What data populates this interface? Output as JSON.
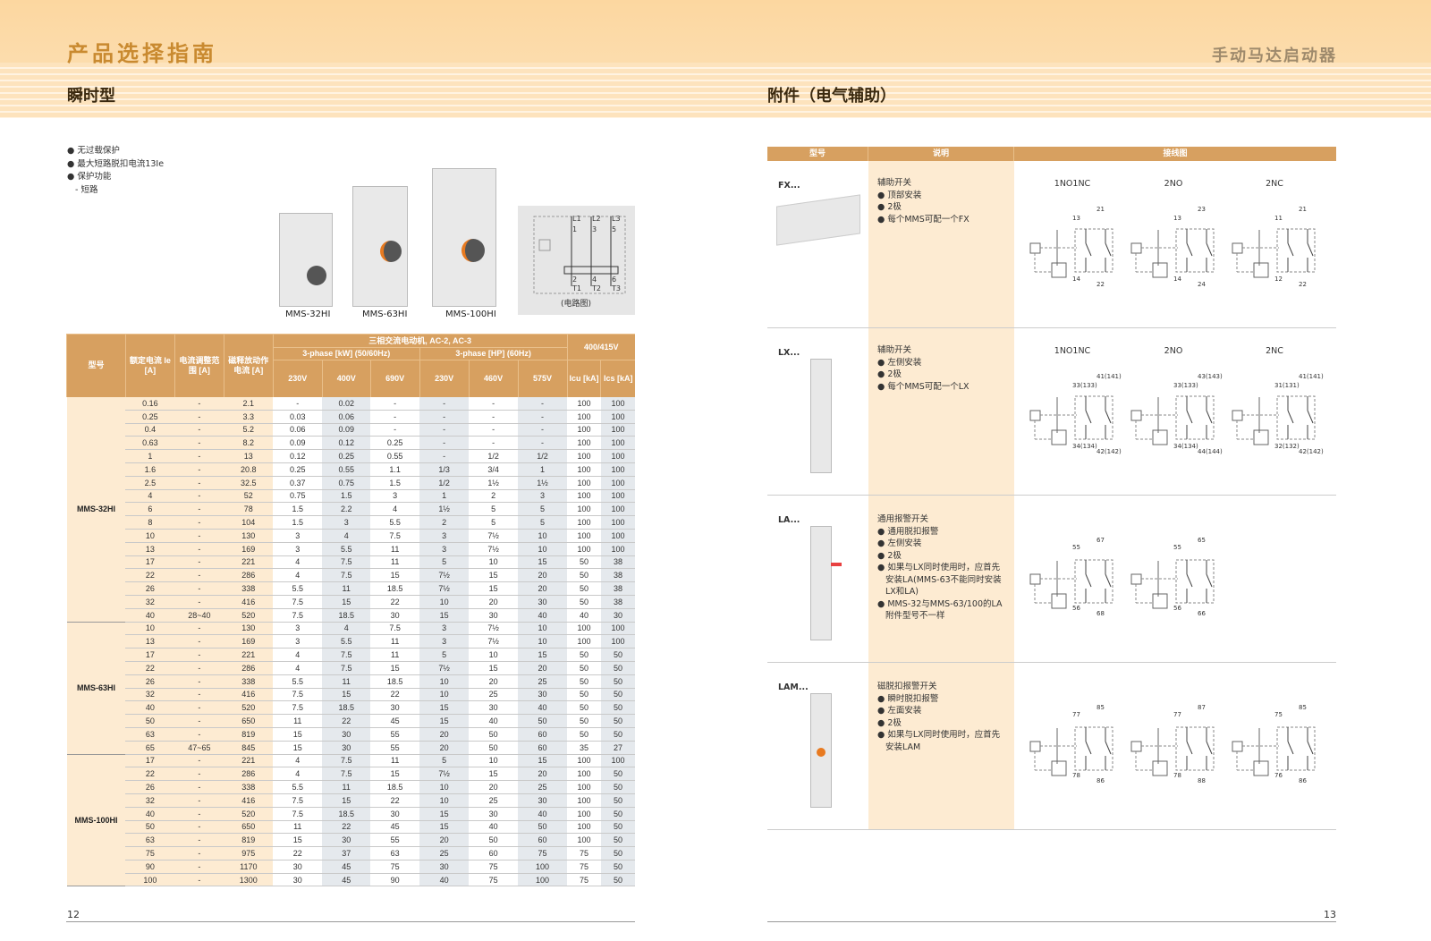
{
  "header": {
    "title": "产品选择指南",
    "right_title": "手动马达启动器",
    "left_section": "瞬时型",
    "right_section": "附件（电气辅助）"
  },
  "features": [
    "无过载保护",
    "最大短路脱扣电流13Ie",
    "保护功能",
    "- 短路"
  ],
  "products": [
    "MMS-32HI",
    "MMS-63HI",
    "MMS-100HI"
  ],
  "circuit": {
    "caption": "(电路图)",
    "lines": [
      "L1",
      "L2",
      "L3"
    ],
    "in": [
      "1",
      "3",
      "5"
    ],
    "out": [
      "2",
      "4",
      "6"
    ],
    "terms": [
      "T1",
      "T2",
      "T3"
    ]
  },
  "table": {
    "head": {
      "model": "型号",
      "ie": "额定电流 Ie [A]",
      "range": "电流调整范围 [A]",
      "mag": "磁释放动作电流 [A]",
      "motor": "三相交流电动机, AC-2, AC-3",
      "kw": "3-phase [kW] (50/60Hz)",
      "hp": "3-phase [HP] (60Hz)",
      "volt": "400/415V",
      "v": [
        "230V",
        "400V",
        "690V",
        "230V",
        "460V",
        "575V"
      ],
      "icu": "Icu [kA]",
      "ics": "Ics [kA]"
    },
    "groups": [
      {
        "model": "MMS-32HI",
        "rows": [
          [
            "0.16",
            "-",
            "2.1",
            "-",
            "0.02",
            "-",
            "-",
            "-",
            "-",
            "100",
            "100"
          ],
          [
            "0.25",
            "-",
            "3.3",
            "0.03",
            "0.06",
            "-",
            "-",
            "-",
            "-",
            "100",
            "100"
          ],
          [
            "0.4",
            "-",
            "5.2",
            "0.06",
            "0.09",
            "-",
            "-",
            "-",
            "-",
            "100",
            "100"
          ],
          [
            "0.63",
            "-",
            "8.2",
            "0.09",
            "0.12",
            "0.25",
            "-",
            "-",
            "-",
            "100",
            "100"
          ],
          [
            "1",
            "-",
            "13",
            "0.12",
            "0.25",
            "0.55",
            "-",
            "1/2",
            "1/2",
            "100",
            "100"
          ],
          [
            "1.6",
            "-",
            "20.8",
            "0.25",
            "0.55",
            "1.1",
            "1/3",
            "3/4",
            "1",
            "100",
            "100"
          ],
          [
            "2.5",
            "-",
            "32.5",
            "0.37",
            "0.75",
            "1.5",
            "1/2",
            "1½",
            "1½",
            "100",
            "100"
          ],
          [
            "4",
            "-",
            "52",
            "0.75",
            "1.5",
            "3",
            "1",
            "2",
            "3",
            "100",
            "100"
          ],
          [
            "6",
            "-",
            "78",
            "1.5",
            "2.2",
            "4",
            "1½",
            "5",
            "5",
            "100",
            "100"
          ],
          [
            "8",
            "-",
            "104",
            "1.5",
            "3",
            "5.5",
            "2",
            "5",
            "5",
            "100",
            "100"
          ],
          [
            "10",
            "-",
            "130",
            "3",
            "4",
            "7.5",
            "3",
            "7½",
            "10",
            "100",
            "100"
          ],
          [
            "13",
            "-",
            "169",
            "3",
            "5.5",
            "11",
            "3",
            "7½",
            "10",
            "100",
            "100"
          ],
          [
            "17",
            "-",
            "221",
            "4",
            "7.5",
            "11",
            "5",
            "10",
            "15",
            "50",
            "38"
          ],
          [
            "22",
            "-",
            "286",
            "4",
            "7.5",
            "15",
            "7½",
            "15",
            "20",
            "50",
            "38"
          ],
          [
            "26",
            "-",
            "338",
            "5.5",
            "11",
            "18.5",
            "7½",
            "15",
            "20",
            "50",
            "38"
          ],
          [
            "32",
            "-",
            "416",
            "7.5",
            "15",
            "22",
            "10",
            "20",
            "30",
            "50",
            "38"
          ],
          [
            "40",
            "28~40",
            "520",
            "7.5",
            "18.5",
            "30",
            "15",
            "30",
            "40",
            "40",
            "30"
          ]
        ]
      },
      {
        "model": "MMS-63HI",
        "rows": [
          [
            "10",
            "-",
            "130",
            "3",
            "4",
            "7.5",
            "3",
            "7½",
            "10",
            "100",
            "100"
          ],
          [
            "13",
            "-",
            "169",
            "3",
            "5.5",
            "11",
            "3",
            "7½",
            "10",
            "100",
            "100"
          ],
          [
            "17",
            "-",
            "221",
            "4",
            "7.5",
            "11",
            "5",
            "10",
            "15",
            "50",
            "50"
          ],
          [
            "22",
            "-",
            "286",
            "4",
            "7.5",
            "15",
            "7½",
            "15",
            "20",
            "50",
            "50"
          ],
          [
            "26",
            "-",
            "338",
            "5.5",
            "11",
            "18.5",
            "10",
            "20",
            "25",
            "50",
            "50"
          ],
          [
            "32",
            "-",
            "416",
            "7.5",
            "15",
            "22",
            "10",
            "25",
            "30",
            "50",
            "50"
          ],
          [
            "40",
            "-",
            "520",
            "7.5",
            "18.5",
            "30",
            "15",
            "30",
            "40",
            "50",
            "50"
          ],
          [
            "50",
            "-",
            "650",
            "11",
            "22",
            "45",
            "15",
            "40",
            "50",
            "50",
            "50"
          ],
          [
            "63",
            "-",
            "819",
            "15",
            "30",
            "55",
            "20",
            "50",
            "60",
            "50",
            "50"
          ],
          [
            "65",
            "47~65",
            "845",
            "15",
            "30",
            "55",
            "20",
            "50",
            "60",
            "35",
            "27"
          ]
        ]
      },
      {
        "model": "MMS-100HI",
        "rows": [
          [
            "17",
            "-",
            "221",
            "4",
            "7.5",
            "11",
            "5",
            "10",
            "15",
            "100",
            "100"
          ],
          [
            "22",
            "-",
            "286",
            "4",
            "7.5",
            "15",
            "7½",
            "15",
            "20",
            "100",
            "50"
          ],
          [
            "26",
            "-",
            "338",
            "5.5",
            "11",
            "18.5",
            "10",
            "20",
            "25",
            "100",
            "50"
          ],
          [
            "32",
            "-",
            "416",
            "7.5",
            "15",
            "22",
            "10",
            "25",
            "30",
            "100",
            "50"
          ],
          [
            "40",
            "-",
            "520",
            "7.5",
            "18.5",
            "30",
            "15",
            "30",
            "40",
            "100",
            "50"
          ],
          [
            "50",
            "-",
            "650",
            "11",
            "22",
            "45",
            "15",
            "40",
            "50",
            "100",
            "50"
          ],
          [
            "63",
            "-",
            "819",
            "15",
            "30",
            "55",
            "20",
            "50",
            "60",
            "100",
            "50"
          ],
          [
            "75",
            "-",
            "975",
            "22",
            "37",
            "63",
            "25",
            "60",
            "75",
            "75",
            "50"
          ],
          [
            "90",
            "-",
            "1170",
            "30",
            "45",
            "75",
            "30",
            "75",
            "100",
            "75",
            "50"
          ],
          [
            "100",
            "-",
            "1300",
            "30",
            "45",
            "90",
            "40",
            "75",
            "100",
            "75",
            "50"
          ]
        ]
      }
    ]
  },
  "accessories": {
    "head": [
      "型号",
      "说明",
      "接线图"
    ],
    "items": [
      {
        "model": "FX...",
        "title": "辅助开关",
        "bullets": [
          "顶部安装",
          "2极",
          "每个MMS可配一个FX"
        ],
        "diagrams": [
          {
            "name": "1NO1NC",
            "t": [
              "13",
              "21",
              "14",
              "22"
            ]
          },
          {
            "name": "2NO",
            "t": [
              "13",
              "23",
              "14",
              "24"
            ]
          },
          {
            "name": "2NC",
            "t": [
              "11",
              "21",
              "12",
              "22"
            ]
          }
        ]
      },
      {
        "model": "LX...",
        "title": "辅助开关",
        "bullets": [
          "左侧安装",
          "2极",
          "每个MMS可配一个LX"
        ],
        "diagrams": [
          {
            "name": "1NO1NC",
            "t": [
              "33(133)",
              "41(141)",
              "34(134)",
              "42(142)"
            ]
          },
          {
            "name": "2NO",
            "t": [
              "33(133)",
              "43(143)",
              "34(134)",
              "44(144)"
            ]
          },
          {
            "name": "2NC",
            "t": [
              "31(131)",
              "41(141)",
              "32(132)",
              "42(142)"
            ]
          }
        ]
      },
      {
        "model": "LA...",
        "title": "通用报警开关",
        "bullets": [
          "通用脱扣报警",
          "左侧安装",
          "2极",
          "如果与LX同时使用时，应首先安装LA(MMS-63不能同时安装LX和LA)",
          "MMS-32与MMS-63/100的LA附件型号不一样"
        ],
        "diagrams": [
          {
            "name": "",
            "t": [
              "55",
              "67",
              "56",
              "68"
            ]
          },
          {
            "name": "",
            "t": [
              "55",
              "65",
              "56",
              "66"
            ]
          }
        ]
      },
      {
        "model": "LAM...",
        "title": "磁脱扣报警开关",
        "bullets": [
          "瞬时脱扣报警",
          "左面安装",
          "2极",
          "如果与LX同时使用时，应首先安装LAM"
        ],
        "diagrams": [
          {
            "name": "",
            "t": [
              "77",
              "85",
              "78",
              "86"
            ]
          },
          {
            "name": "",
            "t": [
              "77",
              "87",
              "78",
              "88"
            ]
          },
          {
            "name": "",
            "t": [
              "75",
              "85",
              "76",
              "86"
            ]
          }
        ]
      }
    ]
  },
  "pages": {
    "left": "12",
    "right": "13"
  },
  "colors": {
    "header_band": "#fcd7a0",
    "table_header": "#d7a060",
    "peach": "#fdebd2",
    "grey_col": "#e5e9ed",
    "title": "#c98a30"
  }
}
